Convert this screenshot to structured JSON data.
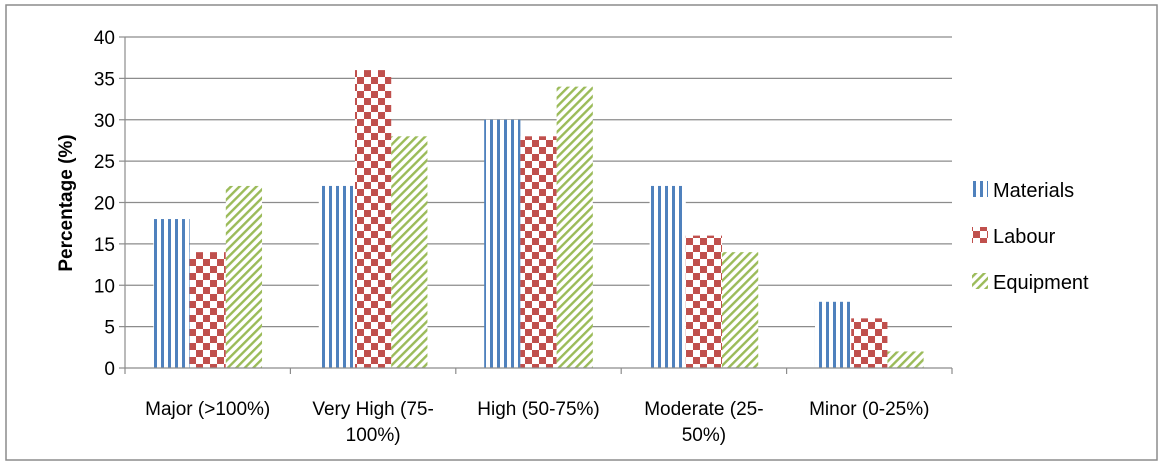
{
  "chart_data": {
    "type": "bar",
    "title": "",
    "xlabel": "",
    "ylabel": "Percentage (%)",
    "ylim": [
      0,
      40
    ],
    "yticks": [
      0,
      5,
      10,
      15,
      20,
      25,
      30,
      35,
      40
    ],
    "grid": "horizontal",
    "legend_position": "right",
    "categories": [
      [
        "Major (>100%)"
      ],
      [
        "Very High (75-",
        "100%)"
      ],
      [
        "High (50-75%)"
      ],
      [
        "Moderate (25-",
        "50%)"
      ],
      [
        "Minor (0-25%)"
      ]
    ],
    "series": [
      {
        "name": "Materials",
        "values": [
          18,
          22,
          30,
          22,
          8
        ],
        "color": "#4F81BD",
        "pattern": "vertical-lines"
      },
      {
        "name": "Labour",
        "values": [
          14,
          36,
          28,
          16,
          6
        ],
        "color": "#C0504D",
        "pattern": "checkerboard"
      },
      {
        "name": "Equipment",
        "values": [
          22,
          28,
          34,
          14,
          2
        ],
        "color": "#9BBB59",
        "pattern": "diagonal-lines"
      }
    ]
  }
}
